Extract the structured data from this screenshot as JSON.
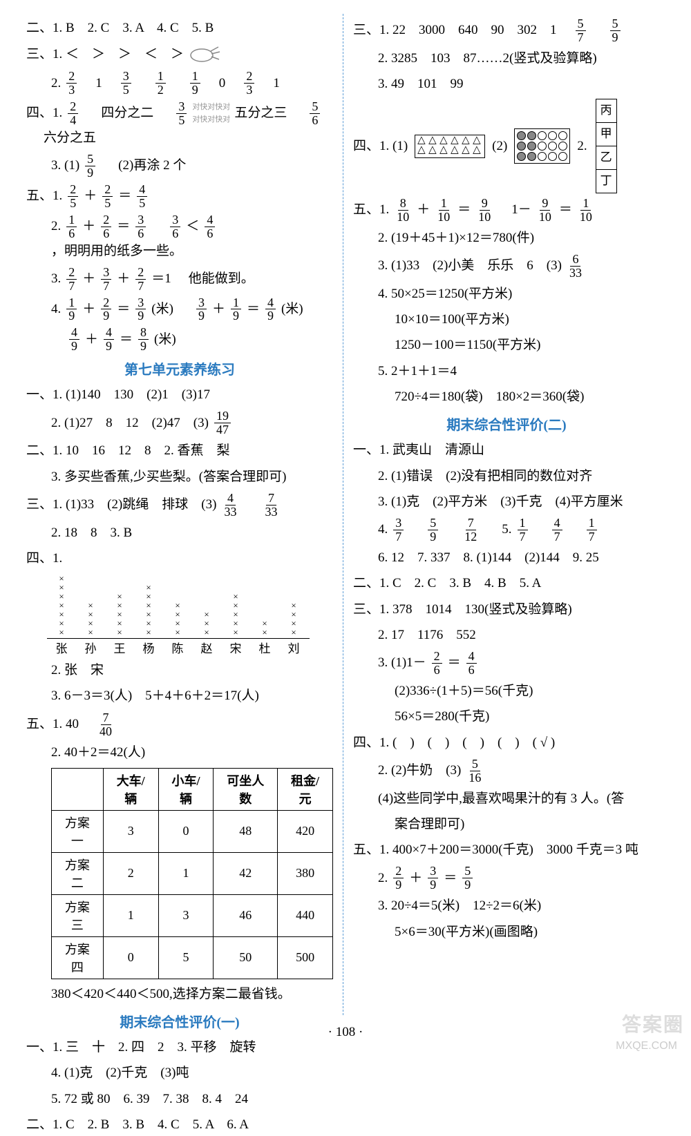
{
  "left": {
    "l1": "二、1. B　2. C　3. A　4. C　5. B",
    "l2": "三、1. ＜　＞　＞　＜　＞",
    "l3_pre": "2. ",
    "l3_fracs": [
      [
        "2",
        "3"
      ],
      [
        "",
        "1"
      ],
      [
        "3",
        "5"
      ],
      [
        "1",
        "2"
      ],
      [
        "",
        "0"
      ],
      [
        "2",
        "3"
      ],
      [
        "",
        "1"
      ]
    ],
    "l3_nums": [
      "",
      "1",
      "",
      "",
      "0",
      "",
      "1"
    ],
    "l4_pre": "四、1. ",
    "l4_a": "四分之二",
    "l4_b": "五分之三",
    "l4_c": "六分之五",
    "l5_pre": "3. (1)",
    "l5_b": "(2)再涂 2 个",
    "l6_pre": "五、1. ",
    "l7_pre": "2. ",
    "l7_tail": "，明明用的纸多一些。",
    "l8_pre": "3. ",
    "l8_tail": "　他能做到。",
    "l9_pre": "4. ",
    "l9_m": "(米)",
    "title1": "第七单元素养练习",
    "u7_1": "一、1. (1)140　130　(2)1　(3)17",
    "u7_2_pre": "2. (1)27　8　12　(2)47　(3)",
    "u7_3": "二、1. 10　16　12　8　2. 香蕉　梨",
    "u7_3b": "3. 多买些香蕉,少买些梨。(答案合理即可)",
    "u7_4_pre": "三、1. (1)33　(2)跳绳　排球　(3)",
    "u7_5": "2. 18　8　3. B",
    "u7_6": "四、1.",
    "dot_labels": [
      "张",
      "孙",
      "王",
      "杨",
      "陈",
      "赵",
      "宋",
      "杜",
      "刘"
    ],
    "dot_counts": [
      7,
      4,
      5,
      6,
      4,
      3,
      5,
      2,
      4
    ],
    "u7_7": "2. 张　宋",
    "u7_8": "3. 6－3＝3(人)　5＋4＋6＋2＝17(人)",
    "u7_9_pre": "五、1. 40　",
    "u7_10": "2. 40＋2＝42(人)",
    "table_headers": [
      "",
      "大车/辆",
      "小车/辆",
      "可坐人数",
      "租金/元"
    ],
    "table_rows": [
      [
        "方案一",
        "3",
        "0",
        "48",
        "420"
      ],
      [
        "方案二",
        "2",
        "1",
        "42",
        "380"
      ],
      [
        "方案三",
        "1",
        "3",
        "46",
        "440"
      ],
      [
        "方案四",
        "0",
        "5",
        "50",
        "500"
      ]
    ],
    "u7_11": "380＜420＜440＜500,选择方案二最省钱。",
    "title2": "期末综合性评价(一)",
    "f1_1": "一、1. 三　十　2. 四　2　3. 平移　旋转",
    "f1_2": "4. (1)克　(2)千克　(3)吨",
    "f1_3": "5. 72 或 80　6. 39　7. 38　8. 4　24",
    "f1_4": "二、1. C　2. B　3. B　4. C　5. A　6. A"
  },
  "right": {
    "r1_pre": "三、1. 22　3000　640　90　302　1　",
    "r2": "2. 3285　103　87……2(竖式及验算略)",
    "r3": "3. 49　101　99",
    "r4_pre": "四、1. (1)",
    "r4_mid": "(2)",
    "r4_end": "2.",
    "vlabels": [
      "丙",
      "甲",
      "乙",
      "丁"
    ],
    "r5_pre": "五、1. ",
    "r6": "2. (19＋45＋1)×12＝780(件)",
    "r7_pre": "3. (1)33　(2)小美　乐乐　6　(3)",
    "r8": "4. 50×25＝1250(平方米)",
    "r8b": "10×10＝100(平方米)",
    "r8c": "1250－100＝1150(平方米)",
    "r9": "5. 2＋1＋1＝4",
    "r9b": "720÷4＝180(袋)　180×2＝360(袋)",
    "title3": "期末综合性评价(二)",
    "f2_1": "一、1. 武夷山　清源山",
    "f2_2": "2. (1)错误　(2)没有把相同的数位对齐",
    "f2_3": "3. (1)克　(2)平方米　(3)千克　(4)平方厘米",
    "f2_4_pre": "4. ",
    "f2_5_pre": "5. ",
    "f2_6": "6. 12　7. 337　8. (1)144　(2)144　9. 25",
    "f2_7": "二、1. C　2. C　3. B　4. B　5. A",
    "f2_8": "三、1. 378　1014　130(竖式及验算略)",
    "f2_9": "2. 17　1176　552",
    "f2_10_pre": "3. (1)1－",
    "f2_11": "(2)336÷(1＋5)＝56(千克)",
    "f2_12": "56×5＝280(千克)",
    "f2_13": "四、1. (　)　(　)　(　)　(　)　( √ )",
    "f2_14_pre": "2. (2)牛奶　(3)",
    "f2_15": "(4)这些同学中,最喜欢喝果汁的有 3 人。(答",
    "f2_15b": "案合理即可)",
    "f2_16": "五、1. 400×7＋200＝3000(千克)　3000 千克＝3 吨",
    "f2_17_pre": "2. ",
    "f2_18": "3. 20÷4＝5(米)　12÷2＝6(米)",
    "f2_19": "5×6＝30(平方米)(画图略)"
  },
  "pagenum": "· 108 ·",
  "watermark1": "答案圈",
  "watermark2": "MXQE.COM"
}
